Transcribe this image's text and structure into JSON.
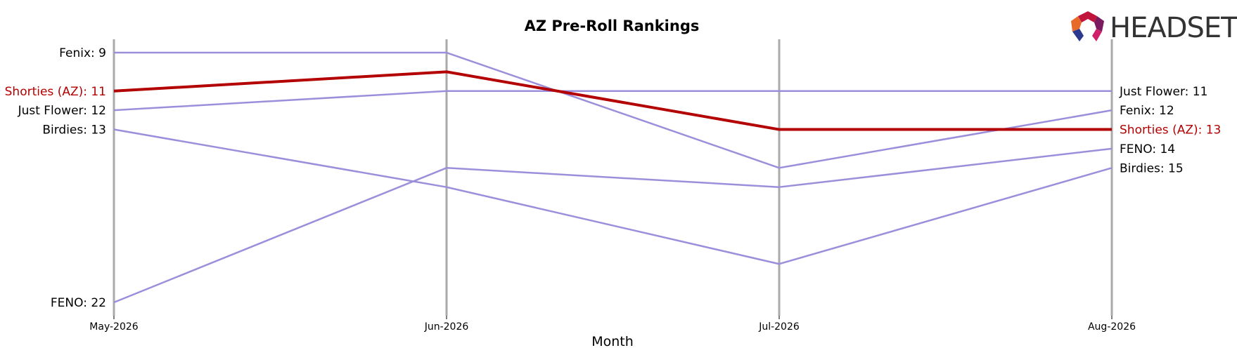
{
  "chart_data": {
    "type": "line",
    "title": "AZ Pre-Roll Rankings",
    "xlabel": "Month",
    "ylabel": "",
    "categories": [
      "May-2026",
      "Jun-2026",
      "Jul-2026",
      "Aug-2026"
    ],
    "y_inverted": true,
    "ylim": [
      8,
      23
    ],
    "grid": false,
    "highlight_color": "#b30000",
    "other_color": "#9b8fdc",
    "axis_line_color": "#aaaaaa",
    "series": [
      {
        "name": "Fenix",
        "values": [
          9,
          9,
          15,
          12
        ],
        "highlight": false
      },
      {
        "name": "Just Flower",
        "values": [
          12,
          11,
          11,
          11
        ],
        "highlight": false
      },
      {
        "name": "Birdies",
        "values": [
          13,
          16,
          20,
          15
        ],
        "highlight": false
      },
      {
        "name": "FENO",
        "values": [
          22,
          15,
          16,
          14
        ],
        "highlight": false
      },
      {
        "name": "Shorties (AZ)",
        "values": [
          11,
          10,
          13,
          13
        ],
        "highlight": true
      }
    ]
  },
  "logo": {
    "text": "HEADSET",
    "colors": [
      "#c0143c",
      "#7b1a5e",
      "#e86a2a",
      "#2b3a8f",
      "#d0206a"
    ]
  }
}
